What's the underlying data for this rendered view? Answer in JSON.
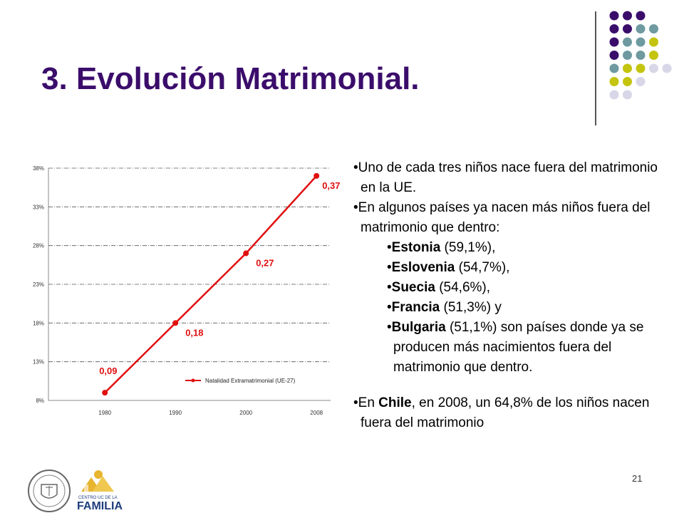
{
  "slide": {
    "title": "3. Evolución Matrimonial.",
    "page_number": "21",
    "accent_color": "#3b0d6b"
  },
  "decor": {
    "dot_colors": {
      "purple": "#3b0d6b",
      "teal": "#6e9aa0",
      "olive": "#c4c40e",
      "lavender": "#d7d7e8"
    },
    "dot_grid": [
      [
        "purple",
        "purple",
        "purple",
        null,
        null
      ],
      [
        "purple",
        "purple",
        "teal",
        "teal",
        null
      ],
      [
        "purple",
        "teal",
        "teal",
        "olive",
        null
      ],
      [
        "purple",
        "teal",
        "teal",
        "olive",
        null
      ],
      [
        "teal",
        "olive",
        "olive",
        "lavender",
        "lavender"
      ],
      [
        "olive",
        "olive",
        "lavender",
        null,
        null
      ],
      [
        "lavender",
        "lavender",
        null,
        null,
        null
      ]
    ]
  },
  "chart_data": {
    "type": "line",
    "x": [
      "1980",
      "1990",
      "2000",
      "2008"
    ],
    "y_ticks": [
      "8%",
      "13%",
      "18%",
      "23%",
      "28%",
      "33%",
      "38%"
    ],
    "ylim": [
      8,
      38
    ],
    "grid": true,
    "legend_position": "bottom-right",
    "line_color": "#e01010",
    "series": [
      {
        "name": "Natalidad Extramatrimonial (UE-27)",
        "values": [
          9,
          18,
          27,
          37
        ],
        "labels": [
          "0,09",
          "0,18",
          "0,27",
          "0,37"
        ]
      }
    ]
  },
  "text": {
    "bullet1": "•Uno de cada tres niños nace fuera del matrimonio en la UE.",
    "bullet2": "•En algunos países ya nacen más niños fuera del matrimonio que dentro:",
    "countries": [
      {
        "prefix": "•",
        "name": "Estonia",
        "rest": " (59,1%),"
      },
      {
        "prefix": "•",
        "name": "Eslovenia",
        "rest": " (54,7%),"
      },
      {
        "prefix": "•",
        "name": "Suecia",
        "rest": " (54,6%),"
      },
      {
        "prefix": "•",
        "name": "Francia",
        "rest": " (51,3%) y"
      },
      {
        "prefix": "•",
        "name": "Bulgaria",
        "rest": " (51,1%) son países donde ya se producen más nacimientos fuera del matrimonio que dentro."
      }
    ],
    "chile": {
      "before": "•En ",
      "name": "Chile",
      "after": ", en 2008, un 64,8% de los niños nacen fuera del matrimonio"
    }
  },
  "logos": {
    "familia_text": "FAMILIA",
    "familia_subtext": "CENTRO UC DE LA"
  }
}
